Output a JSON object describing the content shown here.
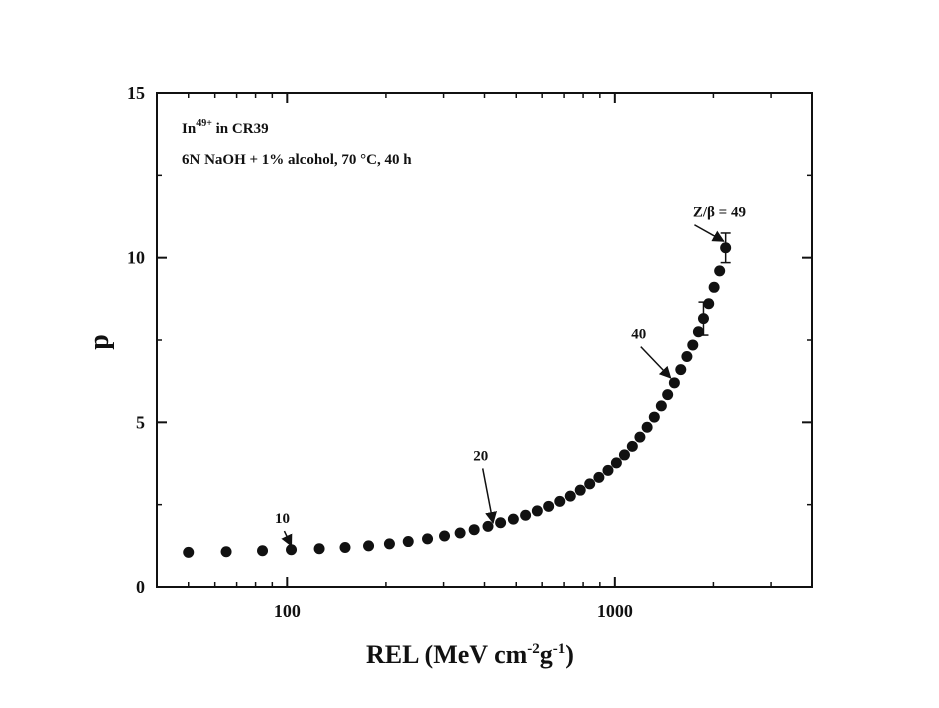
{
  "chart_data": {
    "type": "scatter",
    "x_scale": "log",
    "xlim": [
      40,
      4000
    ],
    "ylim": [
      0,
      15
    ],
    "x_ticks": [
      100,
      1000
    ],
    "x_tick_labels": [
      "100",
      "1000"
    ],
    "y_ticks": [
      0,
      5,
      10,
      15
    ],
    "y_tick_labels": [
      "0",
      "5",
      "10",
      "15"
    ],
    "xlabel": {
      "main": "REL (MeV cm",
      "exp1": "-2",
      "mid": "g",
      "exp2": "-1",
      "end": ")"
    },
    "ylabel": "p",
    "grid": false,
    "annotations": {
      "ion": {
        "prefix": "In",
        "sup": "49+",
        "suffix": " in CR39"
      },
      "etch": "6N NaOH + 1% alcohol, 70 °C, 40 h",
      "z10": "10",
      "z20": "20",
      "z40": "40",
      "z49": "Z/β = 49"
    },
    "points": [
      {
        "x": 50,
        "y": 1.05
      },
      {
        "x": 65,
        "y": 1.07
      },
      {
        "x": 84,
        "y": 1.1
      },
      {
        "x": 103,
        "y": 1.13
      },
      {
        "x": 125,
        "y": 1.16
      },
      {
        "x": 150,
        "y": 1.2
      },
      {
        "x": 177,
        "y": 1.25
      },
      {
        "x": 205,
        "y": 1.31
      },
      {
        "x": 234,
        "y": 1.38
      },
      {
        "x": 268,
        "y": 1.46
      },
      {
        "x": 302,
        "y": 1.55
      },
      {
        "x": 337,
        "y": 1.64
      },
      {
        "x": 372,
        "y": 1.74
      },
      {
        "x": 410,
        "y": 1.84
      },
      {
        "x": 448,
        "y": 1.95
      },
      {
        "x": 490,
        "y": 2.06
      },
      {
        "x": 534,
        "y": 2.18
      },
      {
        "x": 580,
        "y": 2.31
      },
      {
        "x": 628,
        "y": 2.45
      },
      {
        "x": 679,
        "y": 2.6
      },
      {
        "x": 731,
        "y": 2.76
      },
      {
        "x": 784,
        "y": 2.94
      },
      {
        "x": 838,
        "y": 3.13
      },
      {
        "x": 894,
        "y": 3.33
      },
      {
        "x": 953,
        "y": 3.54
      },
      {
        "x": 1011,
        "y": 3.77
      },
      {
        "x": 1070,
        "y": 4.01
      },
      {
        "x": 1131,
        "y": 4.27
      },
      {
        "x": 1193,
        "y": 4.55
      },
      {
        "x": 1255,
        "y": 4.85
      },
      {
        "x": 1320,
        "y": 5.16
      },
      {
        "x": 1387,
        "y": 5.5
      },
      {
        "x": 1450,
        "y": 5.84
      },
      {
        "x": 1520,
        "y": 6.2
      },
      {
        "x": 1590,
        "y": 6.6
      },
      {
        "x": 1660,
        "y": 7.0
      },
      {
        "x": 1730,
        "y": 7.35
      },
      {
        "x": 1800,
        "y": 7.75
      },
      {
        "x": 1865,
        "y": 8.15,
        "err": 0.5
      },
      {
        "x": 1935,
        "y": 8.6
      },
      {
        "x": 2010,
        "y": 9.1
      },
      {
        "x": 2090,
        "y": 9.6
      },
      {
        "x": 2180,
        "y": 10.3,
        "err": 0.45
      }
    ],
    "arrows": [
      {
        "label": "z10",
        "from": [
          98,
          1.7
        ],
        "to": [
          103,
          1.25
        ]
      },
      {
        "label": "z20",
        "from": [
          395,
          3.6
        ],
        "to": [
          425,
          1.95
        ]
      },
      {
        "label": "z40",
        "from": [
          1200,
          7.3
        ],
        "to": [
          1480,
          6.35
        ]
      },
      {
        "label": "z49",
        "from": [
          1750,
          11.0
        ],
        "to": [
          2150,
          10.5
        ]
      }
    ]
  }
}
